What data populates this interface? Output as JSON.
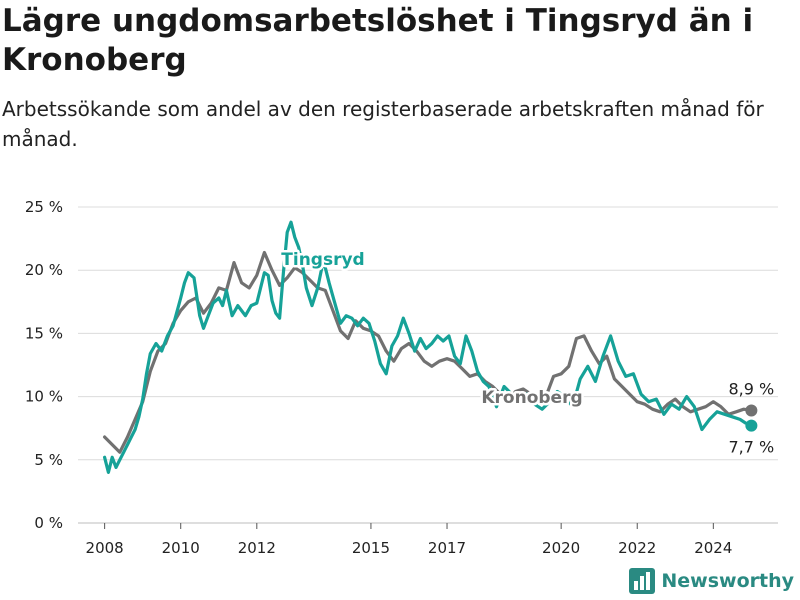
{
  "header": {
    "title": "Lägre ungdomsarbetslöshet i Tingsryd än i Kronoberg",
    "subtitle": "Arbetssökande som andel av den registerbaserade arbetskraften månad för månad."
  },
  "brand": {
    "name": "Newsworthy",
    "icon": "bar-chart-logo-icon"
  },
  "chart_data": {
    "type": "line",
    "title": "Lägre ungdomsarbetslöshet i Tingsryd än i Kronoberg",
    "subtitle": "Arbetssökande som andel av den registerbaserade arbetskraften månad för månad.",
    "xlabel": "",
    "ylabel": "",
    "xlim": [
      2007.3,
      2025.7
    ],
    "ylim": [
      0,
      25
    ],
    "yticks": [
      0,
      5,
      10,
      15,
      20,
      25
    ],
    "ytick_labels": [
      "0 %",
      "5 %",
      "10 %",
      "15 %",
      "20 %",
      "25 %"
    ],
    "xticks": [
      2008,
      2010,
      2012,
      2015,
      2017,
      2020,
      2022,
      2024
    ],
    "xtick_labels": [
      "2008",
      "2010",
      "2012",
      "2015",
      "2017",
      "2020",
      "2022",
      "2024"
    ],
    "grid": true,
    "legend": "direct-labels",
    "series": [
      {
        "name": "Kronoberg",
        "color": "#717171",
        "end_label": "8,9 %",
        "x": [
          2008.0,
          2008.2,
          2008.4,
          2008.6,
          2008.8,
          2009.0,
          2009.2,
          2009.4,
          2009.6,
          2009.8,
          2010.0,
          2010.2,
          2010.4,
          2010.6,
          2010.8,
          2011.0,
          2011.2,
          2011.4,
          2011.6,
          2011.8,
          2012.0,
          2012.2,
          2012.4,
          2012.6,
          2012.8,
          2013.0,
          2013.2,
          2013.4,
          2013.6,
          2013.8,
          2014.0,
          2014.2,
          2014.4,
          2014.6,
          2014.8,
          2015.0,
          2015.2,
          2015.4,
          2015.6,
          2015.8,
          2016.0,
          2016.2,
          2016.4,
          2016.6,
          2016.8,
          2017.0,
          2017.2,
          2017.4,
          2017.6,
          2017.8,
          2018.0,
          2018.2,
          2018.4,
          2018.6,
          2018.8,
          2019.0,
          2019.2,
          2019.4,
          2019.6,
          2019.8,
          2020.0,
          2020.2,
          2020.4,
          2020.6,
          2020.8,
          2021.0,
          2021.2,
          2021.4,
          2021.6,
          2021.8,
          2022.0,
          2022.2,
          2022.4,
          2022.6,
          2022.8,
          2023.0,
          2023.2,
          2023.4,
          2023.6,
          2023.8,
          2024.0,
          2024.2,
          2024.4,
          2024.6,
          2024.8,
          2025.0
        ],
        "y": [
          6.8,
          6.2,
          5.6,
          6.8,
          8.2,
          9.6,
          12.0,
          13.6,
          14.2,
          15.8,
          16.8,
          17.5,
          17.8,
          16.6,
          17.4,
          18.6,
          18.4,
          20.6,
          19.0,
          18.6,
          19.6,
          21.4,
          20.0,
          18.8,
          19.4,
          20.2,
          19.8,
          19.2,
          18.6,
          18.4,
          16.8,
          15.2,
          14.6,
          16.0,
          15.4,
          15.2,
          14.8,
          13.6,
          12.8,
          13.8,
          14.2,
          13.6,
          12.8,
          12.4,
          12.8,
          13.0,
          12.8,
          12.2,
          11.6,
          11.8,
          11.2,
          10.8,
          10.2,
          9.6,
          10.4,
          10.6,
          10.2,
          9.4,
          10.0,
          11.6,
          11.8,
          12.4,
          14.6,
          14.8,
          13.6,
          12.6,
          13.2,
          11.4,
          10.8,
          10.2,
          9.6,
          9.4,
          9.0,
          8.8,
          9.4,
          9.8,
          9.2,
          8.8,
          9.0,
          9.2,
          9.6,
          9.2,
          8.6,
          8.8,
          9.0,
          8.9
        ]
      },
      {
        "name": "Tingsryd",
        "color": "#16a298",
        "end_label": "7,7 %",
        "x": [
          2008.0,
          2008.1,
          2008.2,
          2008.3,
          2008.4,
          2008.5,
          2008.6,
          2008.7,
          2008.8,
          2008.9,
          2009.0,
          2009.1,
          2009.2,
          2009.35,
          2009.5,
          2009.65,
          2009.8,
          2010.0,
          2010.1,
          2010.2,
          2010.35,
          2010.5,
          2010.6,
          2010.7,
          2010.85,
          2011.0,
          2011.1,
          2011.2,
          2011.35,
          2011.5,
          2011.6,
          2011.7,
          2011.85,
          2012.0,
          2012.1,
          2012.2,
          2012.3,
          2012.4,
          2012.5,
          2012.6,
          2012.7,
          2012.8,
          2012.9,
          2013.0,
          2013.1,
          2013.2,
          2013.3,
          2013.45,
          2013.6,
          2013.75,
          2013.9,
          2014.05,
          2014.2,
          2014.35,
          2014.5,
          2014.65,
          2014.8,
          2014.95,
          2015.1,
          2015.25,
          2015.4,
          2015.55,
          2015.7,
          2015.85,
          2016.0,
          2016.15,
          2016.3,
          2016.45,
          2016.6,
          2016.75,
          2016.9,
          2017.05,
          2017.2,
          2017.35,
          2017.5,
          2017.65,
          2017.8,
          2017.95,
          2018.1,
          2018.3,
          2018.5,
          2018.7,
          2018.9,
          2019.1,
          2019.3,
          2019.5,
          2019.7,
          2019.9,
          2020.1,
          2020.3,
          2020.5,
          2020.7,
          2020.9,
          2021.1,
          2021.3,
          2021.5,
          2021.7,
          2021.9,
          2022.1,
          2022.3,
          2022.5,
          2022.7,
          2022.9,
          2023.1,
          2023.3,
          2023.5,
          2023.7,
          2023.9,
          2024.1,
          2024.3,
          2024.5,
          2024.7,
          2024.85,
          2025.0
        ],
        "y": [
          5.2,
          4.0,
          5.2,
          4.4,
          5.0,
          5.6,
          6.2,
          6.8,
          7.4,
          8.4,
          9.8,
          11.8,
          13.4,
          14.2,
          13.6,
          14.8,
          15.6,
          17.8,
          19.0,
          19.8,
          19.4,
          16.4,
          15.4,
          16.2,
          17.4,
          17.8,
          17.2,
          18.4,
          16.4,
          17.2,
          16.8,
          16.4,
          17.2,
          17.4,
          18.6,
          19.8,
          19.6,
          17.6,
          16.6,
          16.2,
          19.8,
          23.0,
          23.8,
          22.6,
          21.8,
          20.4,
          18.6,
          17.2,
          18.6,
          20.8,
          19.0,
          17.4,
          15.8,
          16.4,
          16.2,
          15.6,
          16.2,
          15.8,
          14.4,
          12.6,
          11.8,
          14.0,
          14.8,
          16.2,
          15.0,
          13.6,
          14.6,
          13.8,
          14.2,
          14.8,
          14.4,
          14.8,
          13.2,
          12.6,
          14.8,
          13.6,
          12.0,
          11.2,
          10.8,
          9.2,
          10.8,
          10.2,
          9.8,
          10.2,
          9.4,
          9.0,
          9.6,
          10.4,
          10.0,
          9.2,
          11.4,
          12.4,
          11.2,
          13.2,
          14.8,
          12.8,
          11.6,
          11.8,
          10.2,
          9.6,
          9.8,
          8.6,
          9.4,
          9.0,
          10.0,
          9.2,
          7.4,
          8.2,
          8.8,
          8.6,
          8.4,
          8.2,
          7.9,
          7.7
        ]
      }
    ]
  }
}
